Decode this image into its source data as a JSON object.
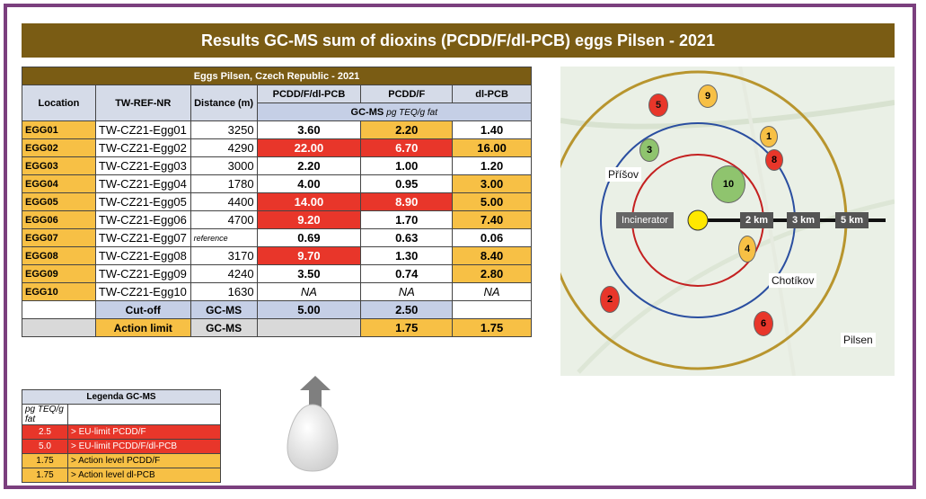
{
  "title": "Results GC-MS sum of dioxins (PCDD/F/dl-PCB) eggs Pilsen  -  2021",
  "table": {
    "caption": "Eggs Pilsen, Czech Republic - 2021",
    "headers": {
      "location": "Location",
      "ref": "TW-REF-NR",
      "distance": "Distance (m)",
      "c1": "PCDD/F/dl-PCB",
      "c2": "PCDD/F",
      "c3": "dl-PCB"
    },
    "subheader": {
      "method": "GC-MS",
      "unit": "pg TEQ/g fat"
    },
    "rows": [
      {
        "loc": "EGG01",
        "ref": "TW-CZ21-Egg01",
        "dist": "3250",
        "c1": "3.60",
        "c2": "2.20",
        "c3": "1.40"
      },
      {
        "loc": "EGG02",
        "ref": "TW-CZ21-Egg02",
        "dist": "4290",
        "c1": "22.00",
        "c2": "6.70",
        "c3": "16.00"
      },
      {
        "loc": "EGG03",
        "ref": "TW-CZ21-Egg03",
        "dist": "3000",
        "c1": "2.20",
        "c2": "1.00",
        "c3": "1.20"
      },
      {
        "loc": "EGG04",
        "ref": "TW-CZ21-Egg04",
        "dist": "1780",
        "c1": "4.00",
        "c2": "0.95",
        "c3": "3.00"
      },
      {
        "loc": "EGG05",
        "ref": "TW-CZ21-Egg05",
        "dist": "4400",
        "c1": "14.00",
        "c2": "8.90",
        "c3": "5.00"
      },
      {
        "loc": "EGG06",
        "ref": "TW-CZ21-Egg06",
        "dist": "4700",
        "c1": "9.20",
        "c2": "1.70",
        "c3": "7.40"
      },
      {
        "loc": "EGG07",
        "ref": "TW-CZ21-Egg07",
        "dist": "reference",
        "c1": "0.69",
        "c2": "0.63",
        "c3": "0.06"
      },
      {
        "loc": "EGG08",
        "ref": "TW-CZ21-Egg08",
        "dist": "3170",
        "c1": "9.70",
        "c2": "1.30",
        "c3": "8.40"
      },
      {
        "loc": "EGG09",
        "ref": "TW-CZ21-Egg09",
        "dist": "4240",
        "c1": "3.50",
        "c2": "0.74",
        "c3": "2.80"
      },
      {
        "loc": "EGG10",
        "ref": "TW-CZ21-Egg10",
        "dist": "1630",
        "c1": "NA",
        "c2": "NA",
        "c3": "NA"
      }
    ],
    "cutoff": {
      "label": "Cut-off",
      "method": "GC-MS",
      "c1": "5.00",
      "c2": "2.50",
      "c3": ""
    },
    "action": {
      "label": "Action limit",
      "method": "GC-MS",
      "c1": "",
      "c2": "1.75",
      "c3": "1.75"
    }
  },
  "legend": {
    "title": "Legenda GC-MS",
    "unit": "pg TEQ/g fat",
    "items": [
      {
        "value": "2.5",
        "text": "> EU-limit PCDD/F",
        "color": "#e8362a"
      },
      {
        "value": "5.0",
        "text": "> EU-limit PCDD/F/dl-PCB",
        "color": "#e8362a"
      },
      {
        "value": "1.75",
        "text": "> Action level PCDD/F",
        "color": "#f7c045"
      },
      {
        "value": "1.75",
        "text": "> Action level dl-PCB",
        "color": "#f7c045"
      }
    ]
  },
  "map": {
    "places": {
      "prisov": "Příšov",
      "chotikov": "Chotíkov",
      "pilsen": "Pilsen"
    },
    "incinerator": "Incinerator",
    "distances": [
      "2 km",
      "3 km",
      "5 km"
    ],
    "markers": [
      "1",
      "2",
      "3",
      "4",
      "5",
      "6",
      "8",
      "9",
      "10"
    ]
  },
  "colors": {
    "title_bar": "#7a5c14",
    "red": "#e8362a",
    "orange": "#f7c045",
    "frame": "#7b3f7e"
  }
}
